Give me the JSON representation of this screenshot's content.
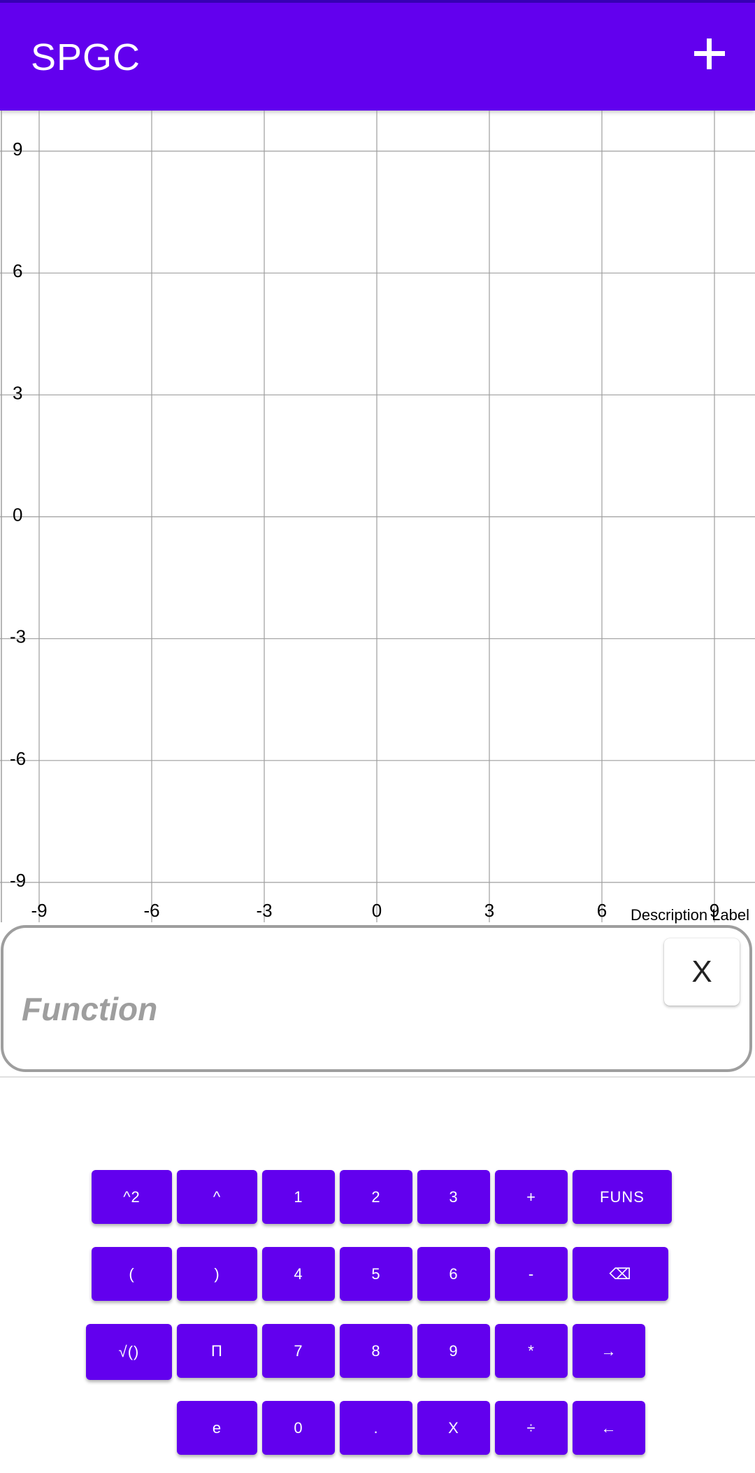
{
  "app_bar": {
    "title": "SPGC",
    "add_icon": "plus-icon"
  },
  "graph": {
    "y_ticks": [
      "9",
      "6",
      "3",
      "0",
      "-3",
      "-6",
      "-9"
    ],
    "x_ticks": [
      "-9",
      "-6",
      "-3",
      "0",
      "3",
      "6",
      "9"
    ],
    "grid_color": "#9e9e9e",
    "description_label": "Description Label"
  },
  "chart_data": {
    "type": "line",
    "xlim": [
      -9,
      9
    ],
    "ylim": [
      -9,
      9
    ],
    "x_ticks": [
      -9,
      -6,
      -3,
      0,
      3,
      6,
      9
    ],
    "y_ticks": [
      -9,
      -6,
      -3,
      0,
      3,
      6,
      9
    ],
    "grid": true,
    "series": []
  },
  "function_input": {
    "placeholder": "Function",
    "value": "",
    "clear_label": "X"
  },
  "keypad": {
    "accent_color": "#6200ee",
    "rows": [
      [
        "^2",
        "^",
        "1",
        "2",
        "3",
        "+",
        "FUNS"
      ],
      [
        "(",
        ")",
        "4",
        "5",
        "6",
        "-",
        "⌫"
      ],
      [
        "√()",
        "Π",
        "7",
        "8",
        "9",
        "*",
        "→"
      ],
      [
        "e",
        "0",
        ".",
        "X",
        "÷",
        "←"
      ]
    ]
  }
}
